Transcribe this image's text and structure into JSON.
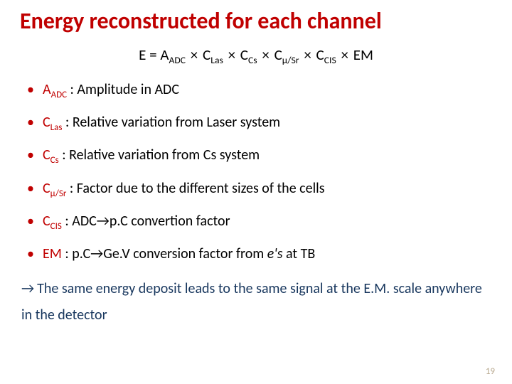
{
  "title": "Energy reconstructed for each channel",
  "equation": {
    "lhs": "E",
    "terms": [
      {
        "base": "A",
        "sub": "ADC"
      },
      {
        "base": "C",
        "sub": "Las"
      },
      {
        "base": "C",
        "sub": "Cs"
      },
      {
        "base": "C",
        "sub": "μ/Sr"
      },
      {
        "base": "C",
        "sub": "CIS"
      },
      {
        "base": "EM",
        "sub": ""
      }
    ]
  },
  "bullets": [
    {
      "term_base": "A",
      "term_sub": "ADC",
      "desc": " : Amplitude in ADC"
    },
    {
      "term_base": "C",
      "term_sub": "Las",
      "desc": " : Relative variation from Laser system"
    },
    {
      "term_base": "C",
      "term_sub": "Cs",
      "desc": " : Relative variation from Cs system"
    },
    {
      "term_base": "C",
      "term_sub": "μ/Sr",
      "desc": " : Factor due to the different sizes of the cells"
    },
    {
      "term_base": "C",
      "term_sub": "CIS",
      "desc_pre": " : ADC",
      "desc_arrow": "→",
      "desc_post": "p.C convertion factor"
    },
    {
      "term_base": "EM",
      "term_sub": "",
      "desc_pre": " : p.C→Ge.V conversion factor from ",
      "desc_em": "e's",
      "desc_post": " at TB"
    }
  ],
  "conclusion": {
    "arrow": "→",
    "text": "The same energy deposit leads to the same signal at the E.M. scale anywhere in the detector"
  },
  "pagenum": "19",
  "colors": {
    "title": "#c00000",
    "term": "#c00000",
    "conclusion": "#17365d",
    "pagenum": "#b8a98f"
  }
}
